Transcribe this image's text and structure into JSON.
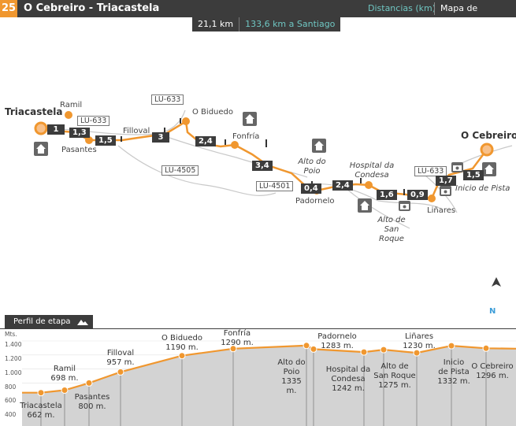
{
  "header": {
    "stage_number": "25",
    "title": "O Cebreiro - Triacastela",
    "distances_link": "Distancias (km)",
    "map_link": "Mapa de situación"
  },
  "distance": {
    "stage_km": "21,1 km",
    "to_santiago": "133,6 km a Santiago"
  },
  "map": {
    "places": {
      "triacastela": "Triacastela",
      "ramil": "Ramil",
      "pasantes": "Pasantes",
      "filloval": "Filloval",
      "o_biduedo": "O Biduedo",
      "fonfria": "Fonfría",
      "alto_do_poio": "Alto do Poio",
      "padornelo": "Padornelo",
      "hospital": "Hospital da Condesa",
      "alto_san_roque": "Alto de San Roque",
      "linares": "Liñares",
      "o_cebreiro": "O Cebreiro",
      "inicio_pista": "Inicio de Pista"
    },
    "roads": [
      "LU-633",
      "LU-633",
      "LU-4505",
      "LU-4501",
      "LU-633"
    ],
    "segments": [
      "1",
      "1,3",
      "1,5",
      "3",
      "2,4",
      "3,4",
      "0,4",
      "2,4",
      "1,6",
      "0,9",
      "1,7",
      "1,5"
    ],
    "north_label": "N",
    "colors": {
      "route": "#f0972f",
      "dark": "#3c3c3c",
      "accent": "#6fc6c2"
    }
  },
  "profile": {
    "tab_label": "Perfil de etapa",
    "axis_unit": "Mts.",
    "axis_ticks": [
      "1.400",
      "1.200",
      "1.000",
      "800",
      "600",
      "400"
    ],
    "points": [
      {
        "name": "Triacastela",
        "alt": "662 m."
      },
      {
        "name": "Ramil",
        "alt": "698 m."
      },
      {
        "name": "Pasantes",
        "alt": "800 m."
      },
      {
        "name": "Filloval",
        "alt": "957 m."
      },
      {
        "name": "O Biduedo",
        "alt": "1190 m."
      },
      {
        "name": "Fonfría",
        "alt": "1290 m."
      },
      {
        "name": "Alto do Poio",
        "alt": "1335 m."
      },
      {
        "name": "Padornelo",
        "alt": "1283 m."
      },
      {
        "name": "Hospital da Condesa",
        "alt": "1242 m."
      },
      {
        "name": "Alto de San Roque",
        "alt": "1275 m."
      },
      {
        "name": "Liñares",
        "alt": "1230 m."
      },
      {
        "name": "Inicio de Pista",
        "alt": "1332 m."
      },
      {
        "name": "O Cebreiro",
        "alt": "1296 m."
      }
    ]
  }
}
